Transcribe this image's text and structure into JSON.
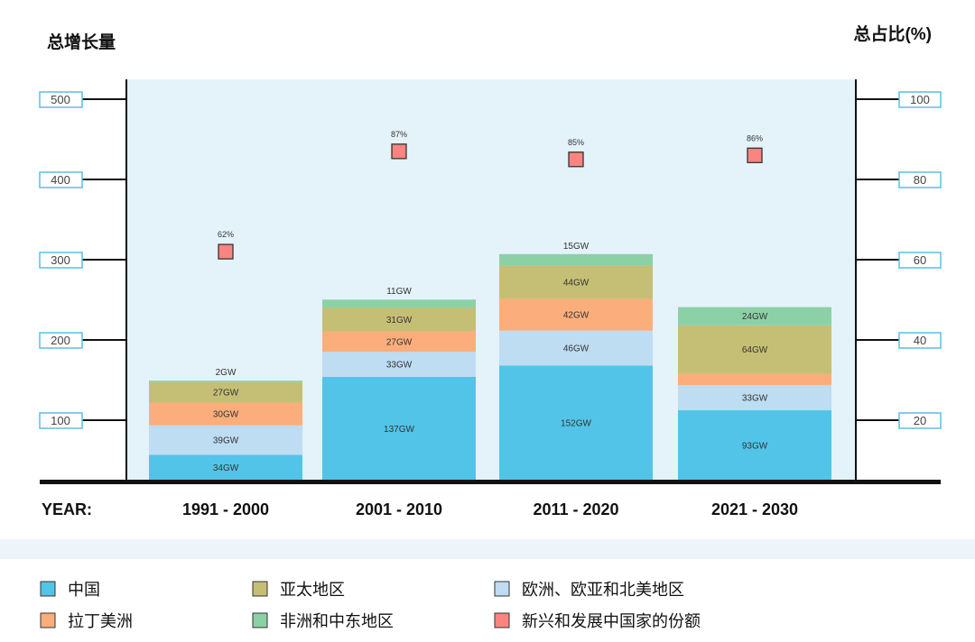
{
  "chart_data": {
    "type": "bar",
    "stacked": true,
    "left_axis_title": "总增长量",
    "right_axis_title": "总占比(%)",
    "x_prefix": "YEAR:",
    "categories": [
      "1991 - 2000",
      "2001 - 2010",
      "2011 - 2020",
      "2021 - 2030"
    ],
    "left_ticks": [
      100,
      200,
      300,
      400,
      500
    ],
    "right_ticks": [
      20,
      40,
      60,
      80,
      100
    ],
    "ylim": [
      0,
      500
    ],
    "y2lim": [
      0,
      100
    ],
    "series": [
      {
        "name": "中国",
        "color": "#52c4e8",
        "values": [
          34,
          137,
          152,
          93
        ]
      },
      {
        "name": "欧洲、欧亚和北美地区",
        "color": "#bedcf2",
        "values": [
          39,
          33,
          46,
          33
        ]
      },
      {
        "name": "拉丁美洲",
        "color": "#fbae7c",
        "values": [
          30,
          27,
          42,
          15
        ]
      },
      {
        "name": "亚太地区",
        "color": "#c5bf75",
        "values": [
          27,
          31,
          44,
          64
        ]
      },
      {
        "name": "非洲和中东地区",
        "color": "#8cd1a6",
        "values": [
          2,
          11,
          15,
          24
        ]
      }
    ],
    "value_suffix": "GW",
    "share": {
      "name": "新兴和发展中国家的份额",
      "color": "#f98480",
      "values": [
        62,
        87,
        85,
        86
      ],
      "suffix": "%"
    },
    "legend": [
      {
        "name": "中国",
        "color": "#52c4e8"
      },
      {
        "name": "亚太地区",
        "color": "#c5bf75"
      },
      {
        "name": "欧洲、欧亚和北美地区",
        "color": "#bedcf2"
      },
      {
        "name": "拉丁美洲",
        "color": "#fbae7c"
      },
      {
        "name": "非洲和中东地区",
        "color": "#8cd1a6"
      },
      {
        "name": "新兴和发展中国家的份额",
        "color": "#f98480"
      }
    ],
    "plot_background": "#e4f2f9",
    "legend_placement": "bottom"
  }
}
